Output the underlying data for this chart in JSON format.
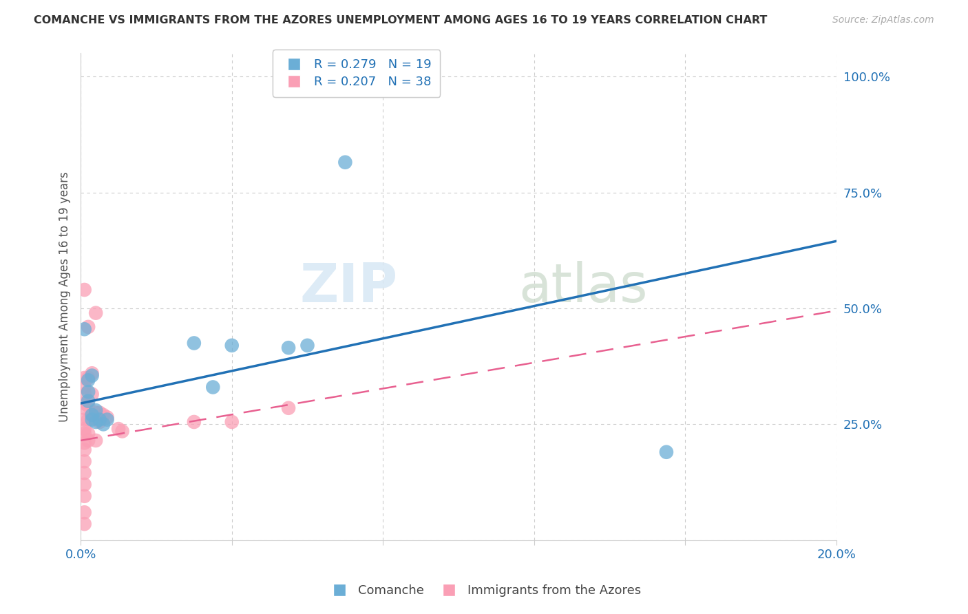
{
  "title": "COMANCHE VS IMMIGRANTS FROM THE AZORES UNEMPLOYMENT AMONG AGES 16 TO 19 YEARS CORRELATION CHART",
  "source": "Source: ZipAtlas.com",
  "ylabel": "Unemployment Among Ages 16 to 19 years",
  "xlim": [
    0.0,
    0.2
  ],
  "ylim": [
    0.0,
    1.05
  ],
  "right_yticks": [
    0.0,
    0.25,
    0.5,
    0.75,
    1.0
  ],
  "right_yticklabels": [
    "",
    "25.0%",
    "50.0%",
    "75.0%",
    "100.0%"
  ],
  "xticks": [
    0.0,
    0.04,
    0.08,
    0.12,
    0.16,
    0.2
  ],
  "xticklabels": [
    "0.0%",
    "",
    "",
    "",
    "",
    "20.0%"
  ],
  "legend_entries": [
    {
      "label": "R = 0.279   N = 19",
      "color": "#a8c8f0"
    },
    {
      "label": "R = 0.207   N = 38",
      "color": "#f5a0b8"
    }
  ],
  "comanche_dots": [
    [
      0.001,
      0.455
    ],
    [
      0.002,
      0.345
    ],
    [
      0.002,
      0.32
    ],
    [
      0.002,
      0.3
    ],
    [
      0.003,
      0.355
    ],
    [
      0.003,
      0.27
    ],
    [
      0.003,
      0.26
    ],
    [
      0.004,
      0.28
    ],
    [
      0.004,
      0.255
    ],
    [
      0.005,
      0.26
    ],
    [
      0.006,
      0.25
    ],
    [
      0.007,
      0.26
    ],
    [
      0.03,
      0.425
    ],
    [
      0.035,
      0.33
    ],
    [
      0.04,
      0.42
    ],
    [
      0.055,
      0.415
    ],
    [
      0.06,
      0.42
    ],
    [
      0.07,
      0.815
    ],
    [
      0.155,
      0.19
    ]
  ],
  "azores_dots": [
    [
      0.001,
      0.54
    ],
    [
      0.001,
      0.35
    ],
    [
      0.001,
      0.33
    ],
    [
      0.001,
      0.315
    ],
    [
      0.001,
      0.295
    ],
    [
      0.001,
      0.285
    ],
    [
      0.001,
      0.26
    ],
    [
      0.001,
      0.24
    ],
    [
      0.001,
      0.23
    ],
    [
      0.001,
      0.21
    ],
    [
      0.001,
      0.195
    ],
    [
      0.001,
      0.17
    ],
    [
      0.001,
      0.145
    ],
    [
      0.001,
      0.12
    ],
    [
      0.001,
      0.095
    ],
    [
      0.001,
      0.06
    ],
    [
      0.001,
      0.035
    ],
    [
      0.002,
      0.46
    ],
    [
      0.002,
      0.35
    ],
    [
      0.002,
      0.29
    ],
    [
      0.002,
      0.26
    ],
    [
      0.002,
      0.23
    ],
    [
      0.002,
      0.215
    ],
    [
      0.003,
      0.36
    ],
    [
      0.003,
      0.315
    ],
    [
      0.003,
      0.27
    ],
    [
      0.004,
      0.49
    ],
    [
      0.004,
      0.275
    ],
    [
      0.004,
      0.215
    ],
    [
      0.005,
      0.275
    ],
    [
      0.005,
      0.255
    ],
    [
      0.006,
      0.27
    ],
    [
      0.007,
      0.265
    ],
    [
      0.01,
      0.24
    ],
    [
      0.011,
      0.235
    ],
    [
      0.03,
      0.255
    ],
    [
      0.04,
      0.255
    ],
    [
      0.055,
      0.285
    ]
  ],
  "comanche_color": "#6baed6",
  "azores_color": "#fa9fb5",
  "comanche_line_color": "#2171b5",
  "azores_line_color": "#e86090",
  "watermark_zip": "ZIP",
  "watermark_atlas": "atlas",
  "background_color": "#ffffff",
  "grid_color": "#cccccc"
}
